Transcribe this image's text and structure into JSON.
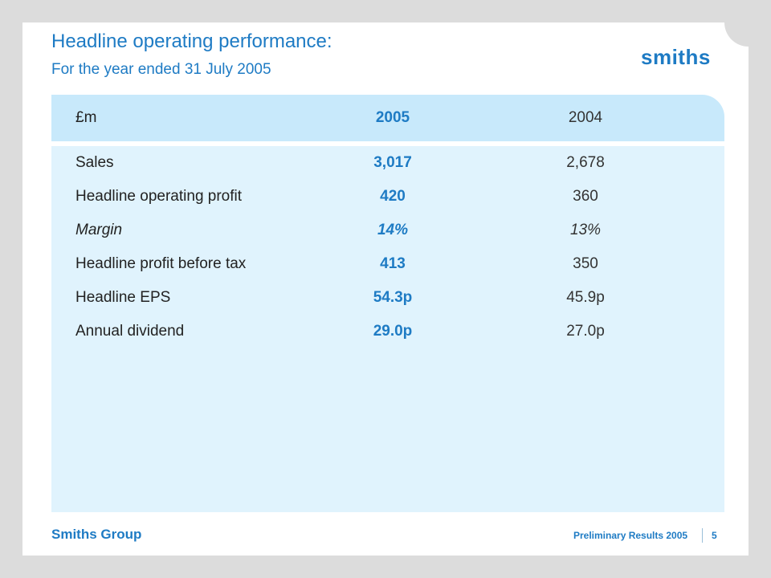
{
  "slide": {
    "title": "Headline operating performance:",
    "subtitle": "For the year ended 31 July 2005",
    "logo_text": "smiths"
  },
  "table": {
    "headers": [
      "£m",
      "2005",
      "2004"
    ],
    "rows": [
      {
        "label": "Sales",
        "v2005": "3,017",
        "v2004": "2,678",
        "italic": false
      },
      {
        "label": "Headline operating profit",
        "v2005": "420",
        "v2004": "360",
        "italic": false
      },
      {
        "label": "Margin",
        "v2005": "14%",
        "v2004": "13%",
        "italic": true
      },
      {
        "label": "Headline profit before tax",
        "v2005": "413",
        "v2004": "350",
        "italic": false
      },
      {
        "label": "Headline EPS",
        "v2005": "54.3p",
        "v2004": "45.9p",
        "italic": false
      },
      {
        "label": "Annual dividend",
        "v2005": "29.0p",
        "v2004": "27.0p",
        "italic": false
      }
    ]
  },
  "footer": {
    "brand": "Smiths Group",
    "title": "Preliminary Results 2005",
    "page_number": "5"
  },
  "colors": {
    "accent": "#1e7bc4",
    "panel": "#e0f3fd",
    "header": "#c8e9fb"
  }
}
